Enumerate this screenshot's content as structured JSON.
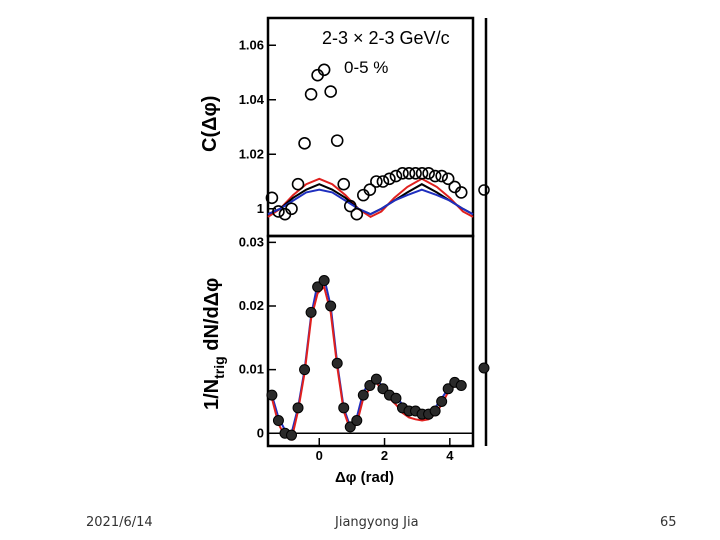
{
  "footer": {
    "date": "2021/6/14",
    "author": "Jiangyong Jia",
    "page": "65"
  },
  "colors": {
    "frame": "#000000",
    "red": "#e0201e",
    "blue": "#1f2fbf",
    "black": "#000000",
    "points_fill": "#2a2a2a"
  },
  "chart_data": [
    {
      "type": "scatter",
      "title": "2-3 × 2-3 GeV/c",
      "subtitle": "0-5 %",
      "ylabel": "C(Δφ)",
      "xlabel": "",
      "xlim": [
        -1.57,
        4.71
      ],
      "ylim": [
        0.99,
        1.07
      ],
      "y_ticks": [
        1,
        1.02,
        1.04,
        1.06
      ],
      "y_tick_labels": [
        "1",
        "1.02",
        "1.04",
        "1.06"
      ],
      "grid": false,
      "series": [
        {
          "marker": "open-circle",
          "x": [
            -1.45,
            -1.25,
            -1.05,
            -0.85,
            -0.65,
            -0.45,
            -0.25,
            -0.05,
            0.15,
            0.35,
            0.55,
            0.75,
            0.95,
            1.15,
            1.35,
            1.55,
            1.75,
            1.95,
            2.15,
            2.35,
            2.55,
            2.75,
            2.95,
            3.15,
            3.35,
            3.55,
            3.75,
            3.95,
            4.15,
            4.35
          ],
          "y": [
            1.004,
            0.999,
            0.998,
            1.0,
            1.009,
            1.024,
            1.042,
            1.049,
            1.051,
            1.043,
            1.025,
            1.009,
            1.001,
            0.998,
            1.005,
            1.007,
            1.01,
            1.01,
            1.011,
            1.012,
            1.013,
            1.013,
            1.013,
            1.013,
            1.013,
            1.012,
            1.012,
            1.011,
            1.008,
            1.006
          ]
        },
        {
          "marker": "line",
          "color": "#e0201e",
          "x": [
            -1.57,
            -1.2,
            -0.8,
            -0.4,
            0.0,
            0.4,
            0.8,
            1.2,
            1.57,
            1.9,
            2.3,
            2.7,
            3.14,
            3.6,
            4.0,
            4.4,
            4.71
          ],
          "y": [
            0.997,
            1.0,
            1.005,
            1.009,
            1.011,
            1.009,
            1.005,
            1.0,
            0.997,
            0.999,
            1.004,
            1.008,
            1.011,
            1.008,
            1.004,
            0.999,
            0.997
          ]
        },
        {
          "marker": "line",
          "color": "#000000",
          "x": [
            -1.57,
            -1.2,
            -0.8,
            -0.4,
            0.0,
            0.4,
            0.8,
            1.2,
            1.57,
            1.9,
            2.3,
            2.7,
            3.14,
            3.6,
            4.0,
            4.4,
            4.71
          ],
          "y": [
            0.998,
            1.0,
            1.004,
            1.007,
            1.009,
            1.007,
            1.004,
            1.0,
            0.998,
            1.0,
            1.003,
            1.006,
            1.009,
            1.006,
            1.003,
            1.0,
            0.998
          ]
        },
        {
          "marker": "line",
          "color": "#1f2fbf",
          "x": [
            -1.57,
            -1.2,
            -0.8,
            -0.4,
            0.0,
            0.4,
            0.8,
            1.2,
            1.57,
            1.9,
            2.3,
            2.7,
            3.14,
            3.6,
            4.0,
            4.4,
            4.71
          ],
          "y": [
            0.998,
            1.0,
            1.003,
            1.006,
            1.007,
            1.006,
            1.003,
            1.0,
            0.998,
            1.0,
            1.003,
            1.005,
            1.007,
            1.005,
            1.003,
            1.0,
            0.998
          ]
        }
      ]
    },
    {
      "type": "scatter",
      "ylabel": "1/N",
      "ylabel_sub": "trig",
      "ylabel_tail": " dN/dΔφ",
      "xlabel": "Δφ (rad)",
      "xlim": [
        -1.57,
        4.71
      ],
      "ylim": [
        -0.002,
        0.031
      ],
      "x_ticks": [
        0,
        2,
        4
      ],
      "x_tick_labels": [
        "0",
        "2",
        "4"
      ],
      "y_ticks": [
        0,
        0.01,
        0.02,
        0.03
      ],
      "y_tick_labels": [
        "0",
        "0.01",
        "0.02",
        "0.03"
      ],
      "grid": false,
      "zero_line": 0,
      "series": [
        {
          "marker": "filled-circle",
          "x": [
            -1.45,
            -1.25,
            -1.05,
            -0.85,
            -0.65,
            -0.45,
            -0.25,
            -0.05,
            0.15,
            0.35,
            0.55,
            0.75,
            0.95,
            1.15,
            1.35,
            1.55,
            1.75,
            1.95,
            2.15,
            2.35,
            2.55,
            2.75,
            2.95,
            3.15,
            3.35,
            3.55,
            3.75,
            3.95,
            4.15,
            4.35
          ],
          "y": [
            0.006,
            0.002,
            0.0,
            -0.0003,
            0.004,
            0.01,
            0.019,
            0.023,
            0.024,
            0.02,
            0.011,
            0.004,
            0.001,
            0.002,
            0.006,
            0.0075,
            0.0085,
            0.007,
            0.006,
            0.0055,
            0.004,
            0.0035,
            0.0035,
            0.003,
            0.003,
            0.0035,
            0.005,
            0.007,
            0.008,
            0.0075
          ]
        },
        {
          "marker": "line",
          "color": "#1f2fbf",
          "x": [
            -1.45,
            -1.25,
            -1.05,
            -0.85,
            -0.65,
            -0.45,
            -0.25,
            -0.05,
            0.15,
            0.35,
            0.55,
            0.75,
            0.95,
            1.15,
            1.35,
            1.55,
            1.75,
            1.95,
            2.15,
            2.35,
            2.55,
            2.75,
            2.95,
            3.15,
            3.35,
            3.55,
            3.75,
            3.95,
            4.15,
            4.35
          ],
          "y": [
            0.006,
            0.0025,
            0.0005,
            0.0,
            0.004,
            0.01,
            0.0185,
            0.0235,
            0.0245,
            0.02,
            0.011,
            0.004,
            0.001,
            0.0025,
            0.0065,
            0.008,
            0.0085,
            0.0073,
            0.0065,
            0.0058,
            0.0045,
            0.0038,
            0.0035,
            0.0032,
            0.0035,
            0.004,
            0.0055,
            0.007,
            0.008,
            0.0075
          ]
        },
        {
          "marker": "line",
          "color": "#e0201e",
          "x": [
            -1.45,
            -1.25,
            -1.05,
            -0.85,
            -0.65,
            -0.45,
            -0.25,
            -0.05,
            0.15,
            0.35,
            0.55,
            0.75,
            0.95,
            1.15,
            1.35,
            1.55,
            1.75,
            1.95,
            2.15,
            2.35,
            2.55,
            2.75,
            2.95,
            3.15,
            3.35,
            3.55,
            3.75,
            3.95,
            4.15,
            4.35
          ],
          "y": [
            0.0055,
            0.0015,
            -0.0005,
            -0.001,
            0.0035,
            0.0095,
            0.018,
            0.022,
            0.023,
            0.019,
            0.0105,
            0.0035,
            0.0005,
            0.0015,
            0.0055,
            0.007,
            0.008,
            0.0065,
            0.0055,
            0.0045,
            0.0032,
            0.0025,
            0.0022,
            0.002,
            0.0022,
            0.003,
            0.0045,
            0.0065,
            0.0075,
            0.007
          ]
        }
      ]
    }
  ]
}
